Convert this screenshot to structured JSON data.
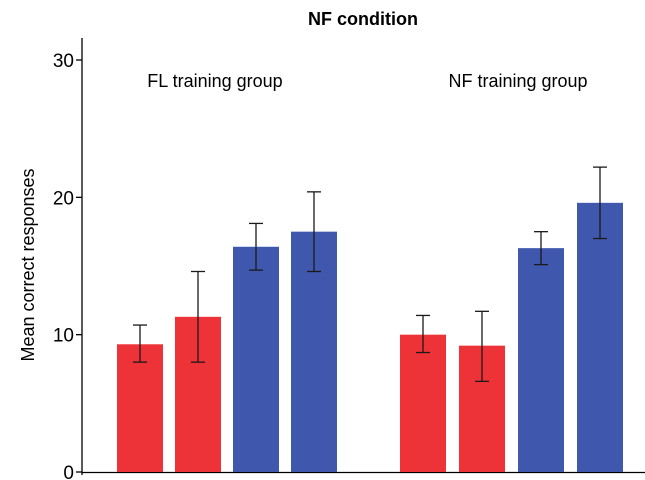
{
  "chart_data": {
    "type": "bar",
    "title": "NF condition",
    "xlabel": "",
    "ylabel": "Mean correct responses",
    "ylim": [
      0,
      32
    ],
    "yticks": [
      0,
      10,
      20,
      30
    ],
    "grid": false,
    "groups": [
      {
        "label": "FL training group",
        "bars": [
          {
            "value": 9.3,
            "err_low": 8.0,
            "err_high": 10.7,
            "color": "#ee3338"
          },
          {
            "value": 11.3,
            "err_low": 8.0,
            "err_high": 14.6,
            "color": "#ee3338"
          },
          {
            "value": 16.4,
            "err_low": 14.7,
            "err_high": 18.1,
            "color": "#3f58ad"
          },
          {
            "value": 17.5,
            "err_low": 14.6,
            "err_high": 20.4,
            "color": "#3f58ad"
          }
        ]
      },
      {
        "label": "NF training group",
        "bars": [
          {
            "value": 10.0,
            "err_low": 8.7,
            "err_high": 11.4,
            "color": "#ee3338"
          },
          {
            "value": 9.2,
            "err_low": 6.6,
            "err_high": 11.7,
            "color": "#ee3338"
          },
          {
            "value": 16.3,
            "err_low": 15.1,
            "err_high": 17.5,
            "color": "#3f58ad"
          },
          {
            "value": 19.6,
            "err_low": 17.0,
            "err_high": 22.2,
            "color": "#3f58ad"
          }
        ]
      }
    ]
  }
}
